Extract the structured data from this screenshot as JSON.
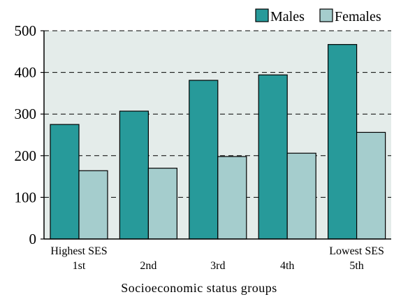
{
  "chart_data": {
    "type": "bar",
    "categories": [
      "1st",
      "2nd",
      "3rd",
      "4th",
      "5th"
    ],
    "category_notes": [
      "Highest SES",
      "",
      "",
      "",
      "Lowest SES"
    ],
    "series": [
      {
        "name": "Males",
        "values": [
          275,
          307,
          381,
          394,
          467
        ],
        "color": "#279a9a"
      },
      {
        "name": "Females",
        "values": [
          164,
          170,
          198,
          206,
          256
        ],
        "color": "#a5cdcd"
      }
    ],
    "xlabel": "Socioeconomic status groups",
    "ylabel": "",
    "ylim": [
      0,
      500
    ],
    "yticks": [
      0,
      100,
      200,
      300,
      400,
      500
    ],
    "grid": "horizontal dashed",
    "legend": "top-right",
    "plot_background": "#e4ecea"
  }
}
